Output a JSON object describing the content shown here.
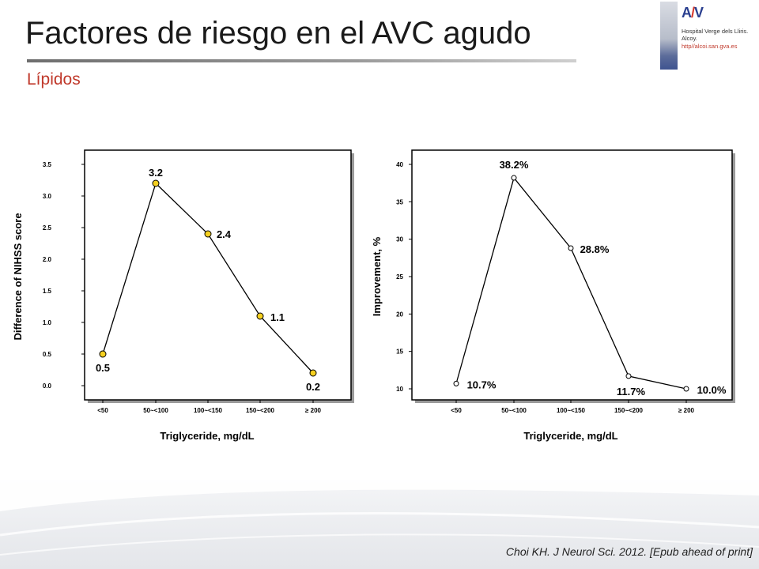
{
  "slide": {
    "title": "Factores de riesgo en el AVC agudo",
    "subtitle": "Lípidos",
    "citation": "Choi KH. J Neurol Sci. 2012. [Epub ahead of print]"
  },
  "logo": {
    "line1": "Hospital Verge dels Lliris.",
    "line2": "Alcoy.",
    "url": "http//alcoi.san.gva.es"
  },
  "chart_data": [
    {
      "type": "line",
      "categories": [
        "<50",
        "50~<100",
        "100~<150",
        "150~<200",
        "≥ 200"
      ],
      "values": [
        0.5,
        3.2,
        2.4,
        1.1,
        0.2
      ],
      "data_labels": [
        "0.5",
        "3.2",
        "2.4",
        "1.1",
        "0.2"
      ],
      "xlabel": "Triglyceride, mg/dL",
      "ylabel": "Difference of NIHSS score",
      "ylim": [
        0,
        3.5
      ],
      "yticks": [
        "0.0",
        "0.5",
        "1.0",
        "1.5",
        "2.0",
        "2.5",
        "3.0",
        "3.5"
      ],
      "marker_color": "#f5d020",
      "grid": false
    },
    {
      "type": "line",
      "categories": [
        "<50",
        "50~<100",
        "100~<150",
        "150~<200",
        "≥ 200"
      ],
      "values": [
        10.7,
        38.2,
        28.8,
        11.7,
        10.0
      ],
      "data_labels": [
        "10.7%",
        "38.2%",
        "28.8%",
        "11.7%",
        "10.0%"
      ],
      "xlabel": "Triglyceride, mg/dL",
      "ylabel": "Improvement, %",
      "ylim": [
        10,
        40
      ],
      "yticks": [
        "10",
        "15",
        "20",
        "25",
        "30",
        "35",
        "40"
      ],
      "marker_color": "#ffffff",
      "grid": false
    }
  ]
}
